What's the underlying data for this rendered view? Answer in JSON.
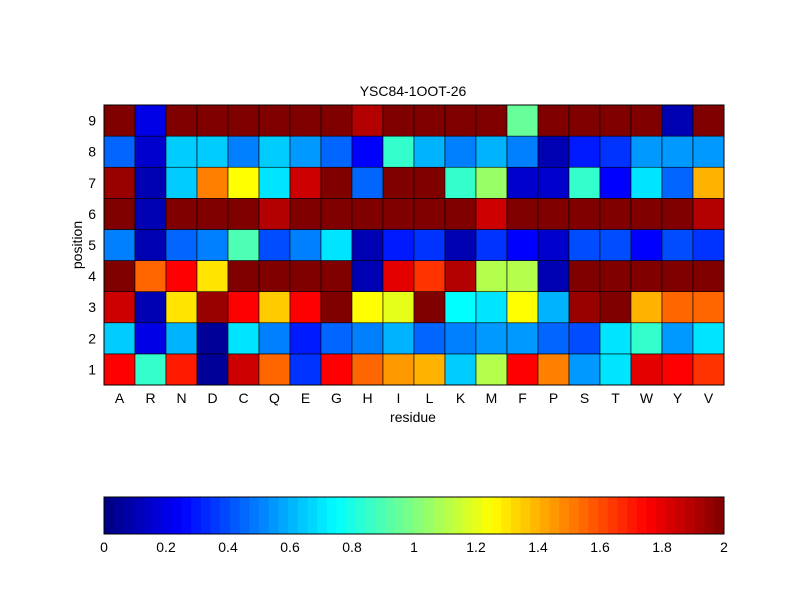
{
  "chart_data": {
    "type": "heatmap",
    "title": "YSC84-1OOT-26",
    "xlabel": "residue",
    "ylabel": "position",
    "x_categories": [
      "A",
      "R",
      "N",
      "D",
      "C",
      "Q",
      "E",
      "G",
      "H",
      "I",
      "L",
      "K",
      "M",
      "F",
      "P",
      "S",
      "T",
      "W",
      "Y",
      "V"
    ],
    "y_categories": [
      "1",
      "2",
      "3",
      "4",
      "5",
      "6",
      "7",
      "8",
      "9"
    ],
    "colormap": "jet",
    "clim": [
      0,
      2
    ],
    "colorbar_ticks": [
      "0",
      "0.2",
      "0.4",
      "0.6",
      "0.8",
      "1",
      "1.2",
      "1.4",
      "1.6",
      "1.8",
      "2"
    ],
    "colorbar_position": "bottom",
    "values": [
      [
        1.75,
        0.85,
        1.7,
        0.05,
        1.85,
        1.55,
        0.35,
        1.75,
        1.55,
        1.45,
        1.4,
        0.65,
        1.1,
        1.75,
        1.5,
        0.55,
        0.7,
        1.8,
        1.75,
        1.65
      ],
      [
        0.65,
        0.2,
        0.6,
        0.05,
        0.7,
        0.5,
        0.3,
        0.45,
        0.5,
        0.6,
        0.45,
        0.5,
        0.55,
        0.55,
        0.45,
        0.4,
        0.7,
        0.85,
        0.55,
        0.7
      ],
      [
        1.85,
        0.1,
        1.3,
        1.95,
        1.75,
        1.35,
        1.75,
        2.0,
        1.25,
        1.2,
        2.0,
        0.75,
        0.7,
        1.25,
        0.6,
        1.95,
        2.0,
        1.4,
        1.55,
        1.55
      ],
      [
        2.0,
        1.55,
        1.75,
        1.3,
        2.0,
        2.0,
        2.0,
        2.0,
        0.1,
        1.8,
        1.65,
        1.9,
        1.1,
        1.1,
        0.1,
        2.0,
        2.0,
        2.0,
        2.0,
        2.0
      ],
      [
        0.5,
        0.1,
        0.45,
        0.5,
        0.9,
        0.4,
        0.5,
        0.7,
        0.1,
        0.3,
        0.35,
        0.1,
        0.35,
        0.25,
        0.15,
        0.4,
        0.4,
        0.25,
        0.4,
        0.35
      ],
      [
        2.0,
        0.1,
        2.0,
        2.0,
        2.0,
        1.9,
        2.0,
        2.0,
        2.0,
        2.0,
        2.0,
        2.0,
        1.85,
        2.0,
        2.0,
        2.0,
        2.0,
        2.0,
        2.0,
        1.9
      ],
      [
        1.95,
        0.1,
        0.65,
        1.5,
        1.25,
        0.7,
        1.85,
        2.0,
        0.45,
        2.0,
        2.0,
        0.85,
        1.05,
        0.15,
        0.15,
        0.85,
        0.25,
        0.7,
        0.45,
        1.4
      ],
      [
        0.45,
        0.15,
        0.65,
        0.65,
        0.5,
        0.65,
        0.55,
        0.45,
        0.25,
        0.85,
        0.6,
        0.5,
        0.6,
        0.5,
        0.1,
        0.3,
        0.35,
        0.55,
        0.55,
        0.55
      ],
      [
        2.0,
        0.2,
        2.0,
        2.0,
        2.0,
        2.0,
        2.0,
        2.0,
        1.9,
        2.0,
        2.0,
        2.0,
        2.0,
        0.95,
        2.0,
        2.0,
        2.0,
        2.0,
        0.1,
        2.0
      ]
    ]
  }
}
